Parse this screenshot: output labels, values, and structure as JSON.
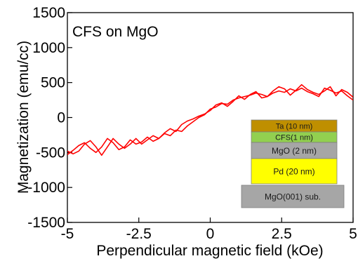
{
  "chart_data": {
    "type": "line",
    "title": "",
    "annotation": "CFS on MgO",
    "xlabel": "Perpendicular magnetic field (kOe)",
    "ylabel": "Magnetization (emu/cc)",
    "xlim": [
      -5,
      5
    ],
    "ylim": [
      -1500,
      1500
    ],
    "xticks": [
      -5,
      -2.5,
      0,
      2.5,
      5
    ],
    "xtick_labels": [
      "-5",
      "-2.5",
      "0",
      "2.5",
      "5"
    ],
    "yticks": [
      -1500,
      -1000,
      -500,
      0,
      500,
      1000,
      1500
    ],
    "ytick_labels": [
      "-1500",
      "-1000",
      "-500",
      "0",
      "500",
      "1000",
      "1500"
    ],
    "grid": false,
    "legend": "none",
    "series": [
      {
        "color": "#ff0000",
        "x": [
          -5.0,
          -4.8,
          -4.6,
          -4.4,
          -4.2,
          -4.0,
          -3.8,
          -3.6,
          -3.4,
          -3.2,
          -3.0,
          -2.8,
          -2.6,
          -2.4,
          -2.2,
          -2.0,
          -1.8,
          -1.6,
          -1.4,
          -1.2,
          -1.0,
          -0.8,
          -0.6,
          -0.4,
          -0.2,
          0.0,
          0.2,
          0.4,
          0.6,
          0.8,
          1.0,
          1.2,
          1.4,
          1.6,
          1.8,
          2.0,
          2.2,
          2.4,
          2.6,
          2.8,
          3.0,
          3.2,
          3.4,
          3.6,
          3.8,
          4.0,
          4.2,
          4.4,
          4.6,
          4.8,
          5.0
        ],
        "y": [
          -530,
          -470,
          -400,
          -360,
          -440,
          -500,
          -420,
          -300,
          -360,
          -460,
          -420,
          -320,
          -380,
          -350,
          -280,
          -340,
          -300,
          -230,
          -260,
          -180,
          -200,
          -120,
          -60,
          0,
          40,
          120,
          150,
          200,
          190,
          250,
          280,
          300,
          320,
          350,
          330,
          300,
          350,
          380,
          360,
          410,
          380,
          420,
          370,
          340,
          300,
          420,
          390,
          350,
          380,
          310,
          250
        ]
      },
      {
        "color": "#ff0000",
        "x": [
          -5.0,
          -4.8,
          -4.6,
          -4.4,
          -4.2,
          -4.0,
          -3.8,
          -3.6,
          -3.4,
          -3.2,
          -3.0,
          -2.8,
          -2.6,
          -2.4,
          -2.2,
          -2.0,
          -1.8,
          -1.6,
          -1.4,
          -1.2,
          -1.0,
          -0.8,
          -0.6,
          -0.4,
          -0.2,
          0.0,
          0.2,
          0.4,
          0.6,
          0.8,
          1.0,
          1.2,
          1.4,
          1.6,
          1.8,
          2.0,
          2.2,
          2.4,
          2.6,
          2.8,
          3.0,
          3.2,
          3.4,
          3.6,
          3.8,
          4.0,
          4.2,
          4.4,
          4.6,
          4.8,
          5.0
        ],
        "y": [
          -480,
          -520,
          -480,
          -380,
          -330,
          -420,
          -540,
          -420,
          -300,
          -380,
          -440,
          -380,
          -300,
          -380,
          -320,
          -260,
          -300,
          -220,
          -160,
          -200,
          -100,
          -50,
          -20,
          20,
          50,
          100,
          180,
          210,
          160,
          230,
          310,
          260,
          330,
          370,
          280,
          300,
          380,
          440,
          410,
          320,
          390,
          470,
          400,
          360,
          330,
          380,
          440,
          310,
          400,
          360,
          290
        ]
      }
    ]
  },
  "inset": {
    "title": "",
    "layers": [
      {
        "label": "Ta (10 nm)",
        "color": "#bf8f00"
      },
      {
        "label": "CFS(1 nm)",
        "color": "#92d050"
      },
      {
        "label": "MgO (2 nm)",
        "color": "#a6a6a6"
      },
      {
        "label": "Pd (20 nm)",
        "color": "#ffff00"
      },
      {
        "label": "MgO(001) sub.",
        "color": "#a6a6a6"
      }
    ]
  }
}
